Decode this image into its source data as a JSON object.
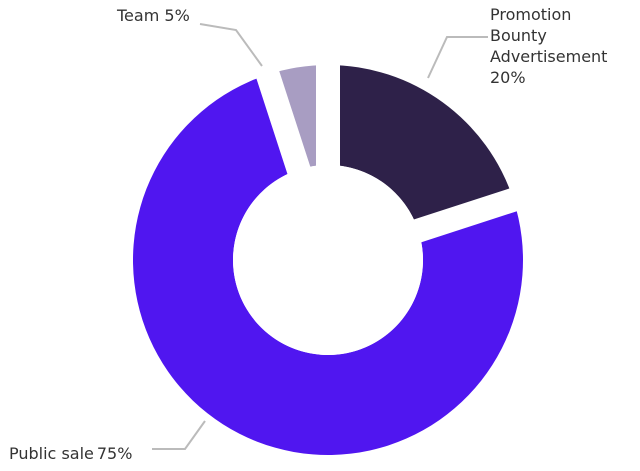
{
  "chart_data": {
    "type": "pie",
    "variant": "donut",
    "exploded": true,
    "slices": [
      {
        "name_lines": [
          "Promotion",
          "Bounty",
          "Advertisement"
        ],
        "label": "20%",
        "value": 20,
        "color": "#2e2149"
      },
      {
        "name_lines": [
          "Public sale"
        ],
        "label": "75%",
        "value": 75,
        "color": "#5016f0"
      },
      {
        "name_lines": [
          "Team"
        ],
        "label": "5%",
        "value": 5,
        "color": "#a89dc2"
      }
    ],
    "leader_line_color": "#bbbbbb",
    "legend": "none"
  }
}
